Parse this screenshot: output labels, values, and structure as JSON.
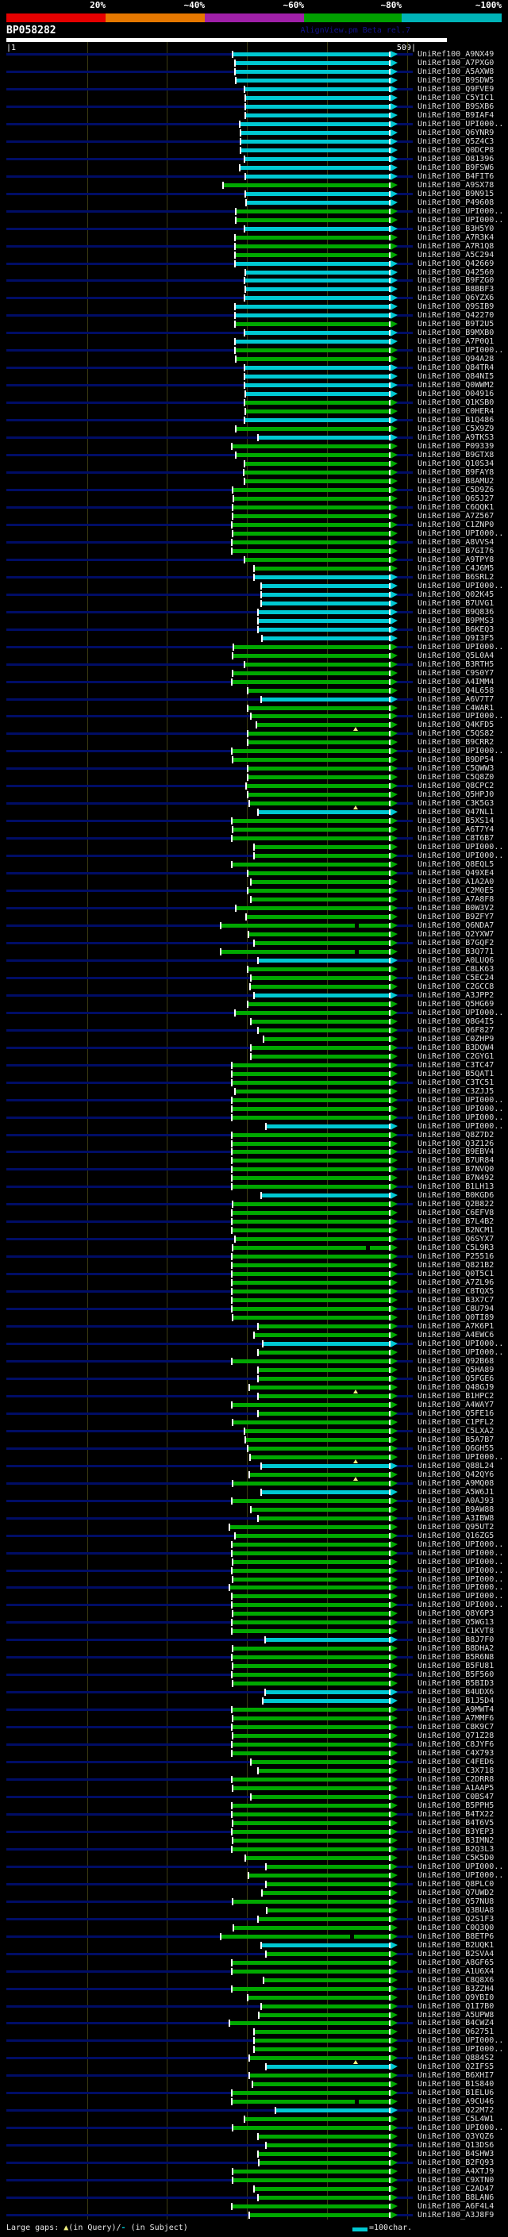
{
  "chart_data": {
    "type": "bar",
    "title": "BP058282",
    "app_version": "AlignView.pm Beta rel.7",
    "xlabel": "",
    "ylabel": "",
    "xlim": [
      1,
      509
    ],
    "ruler": {
      "start_label": "|1",
      "end_label": "509|",
      "gridline_positions": [
        100,
        200,
        300,
        400,
        500
      ]
    },
    "identity_scale": {
      "labels": [
        "20%",
        "~40%",
        "~60%",
        "~80%",
        "~100%"
      ],
      "colors": [
        "#e60000",
        "#e67800",
        "#a020a8",
        "#00a000",
        "#00b4b8"
      ]
    },
    "bar_colors": {
      "c": "#00c8d2",
      "g": "#00a800"
    },
    "marker_meaning": {
      "t": "large gap in Query",
      "d": "large gap in Subject"
    },
    "id_prefix": "UniRef100_",
    "rows": [
      [
        "A9NX49",
        294,
        "c"
      ],
      [
        "A7PXG0",
        297,
        "c"
      ],
      [
        "A5AXW8",
        297,
        "c"
      ],
      [
        "B9SDW5",
        298,
        "c"
      ],
      [
        "Q9FVE9",
        309,
        "c"
      ],
      [
        "C5YIC1",
        310,
        "c"
      ],
      [
        "B9SXB6",
        310,
        "c"
      ],
      [
        "B9IAF4",
        310,
        "c"
      ],
      [
        "UPI000..",
        303,
        "c"
      ],
      [
        "Q6YNR9",
        304,
        "c"
      ],
      [
        "Q5Z4C3",
        304,
        "c"
      ],
      [
        "Q0DCP8",
        304,
        "c"
      ],
      [
        "O81396",
        309,
        "c"
      ],
      [
        "B9FSW6",
        303,
        "c"
      ],
      [
        "B4FIT6",
        310,
        "c"
      ],
      [
        "A9SX78",
        282,
        "g"
      ],
      [
        "B9N915",
        310,
        "c"
      ],
      [
        "P49608",
        311,
        "c"
      ],
      [
        "UPI000..",
        298,
        "g"
      ],
      [
        "UPI000..",
        298,
        "g"
      ],
      [
        "B3H5Y0",
        309,
        "c"
      ],
      [
        "A7R3K4",
        297,
        "g"
      ],
      [
        "A7R1Q8",
        297,
        "g"
      ],
      [
        "A5C294",
        297,
        "g"
      ],
      [
        "Q42669",
        297,
        "c"
      ],
      [
        "Q42560",
        310,
        "c"
      ],
      [
        "B9FZG0",
        309,
        "c"
      ],
      [
        "B8BBF3",
        310,
        "c"
      ],
      [
        "Q6YZX6",
        309,
        "c"
      ],
      [
        "Q9SIB9",
        297,
        "c"
      ],
      [
        "Q42270",
        297,
        "c"
      ],
      [
        "B9T2U5",
        297,
        "g"
      ],
      [
        "B9MXB0",
        309,
        "c"
      ],
      [
        "A7P0Q1",
        297,
        "c"
      ],
      [
        "UPI000..",
        297,
        "g"
      ],
      [
        "Q94A28",
        298,
        "g"
      ],
      [
        "Q84TR4",
        309,
        "c"
      ],
      [
        "Q84NI5",
        309,
        "c"
      ],
      [
        "Q0WWM2",
        309,
        "c"
      ],
      [
        "O04916",
        310,
        "c"
      ],
      [
        "Q1KSB0",
        309,
        "g"
      ],
      [
        "C0HER4",
        310,
        "g"
      ],
      [
        "B1Q486",
        309,
        "c"
      ],
      [
        "C5X9Z9",
        298,
        "g"
      ],
      [
        "A9TKS3",
        326,
        "c"
      ],
      [
        "P09339",
        293,
        "g"
      ],
      [
        "B9GTX8",
        298,
        "g"
      ],
      [
        "Q10S34",
        309,
        "g"
      ],
      [
        "B9FAY8",
        308,
        "g"
      ],
      [
        "B8AMU2",
        309,
        "g"
      ],
      [
        "C5D9Z6",
        294,
        "g"
      ],
      [
        "Q65J27",
        295,
        "g"
      ],
      [
        "C6QQK1",
        294,
        "g"
      ],
      [
        "A7Z567",
        294,
        "g"
      ],
      [
        "C1ZNP0",
        293,
        "g"
      ],
      [
        "UPI000..",
        294,
        "g"
      ],
      [
        "A8VVS4",
        293,
        "g"
      ],
      [
        "B7GI76",
        293,
        "g"
      ],
      [
        "A9TPY8",
        309,
        "g"
      ],
      [
        "C4J6M5",
        321,
        "g"
      ],
      [
        "B6SRL2",
        321,
        "c"
      ],
      [
        "UPI000..",
        330,
        "c"
      ],
      [
        "Q02K45",
        330,
        "c"
      ],
      [
        "B7UVG1",
        330,
        "c"
      ],
      [
        "B9Q836",
        326,
        "c"
      ],
      [
        "B9PMS3",
        326,
        "c"
      ],
      [
        "B6KEQ3",
        326,
        "c"
      ],
      [
        "Q9I3F5",
        331,
        "c"
      ],
      [
        "UPI000..",
        295,
        "g"
      ],
      [
        "Q5L0A4",
        294,
        "g"
      ],
      [
        "B3RTH5",
        309,
        "g"
      ],
      [
        "C9S0Y7",
        294,
        "g"
      ],
      [
        "A4IMM4",
        293,
        "g"
      ],
      [
        "Q4L658",
        313,
        "g"
      ],
      [
        "A6V7T7",
        330,
        "c"
      ],
      [
        "C4WAR1",
        313,
        "g"
      ],
      [
        "UPI000..",
        317,
        "g"
      ],
      [
        "Q4KFD5",
        324,
        "g",
        "t",
        448
      ],
      [
        "C5QS82",
        313,
        "g"
      ],
      [
        "B9CRR2",
        313,
        "g"
      ],
      [
        "UPI000..",
        293,
        "g"
      ],
      [
        "B9DP54",
        294,
        "g"
      ],
      [
        "C5QWW3",
        313,
        "g"
      ],
      [
        "C5Q8Z0",
        313,
        "g"
      ],
      [
        "Q8CPC2",
        311,
        "g"
      ],
      [
        "Q5HPJ0",
        313,
        "g"
      ],
      [
        "C3K5G3",
        315,
        "g",
        "t",
        448
      ],
      [
        "Q47NL1",
        326,
        "c"
      ],
      [
        "B5XS14",
        293,
        "g"
      ],
      [
        "A6T7Y4",
        294,
        "g"
      ],
      [
        "C8T6B7",
        293,
        "g"
      ],
      [
        "UPI000..",
        321,
        "g"
      ],
      [
        "UPI000..",
        321,
        "g"
      ],
      [
        "Q8EQL5",
        293,
        "g"
      ],
      [
        "Q49XE4",
        313,
        "g"
      ],
      [
        "A1A2A0",
        317,
        "g"
      ],
      [
        "C2M0E5",
        313,
        "g"
      ],
      [
        "A7A8F8",
        317,
        "g"
      ],
      [
        "B0W3V2",
        298,
        "g"
      ],
      [
        "B9ZFY7",
        311,
        "g"
      ],
      [
        "Q6NDA7",
        279,
        "g",
        "d",
        447
      ],
      [
        "Q2YXW7",
        314,
        "g"
      ],
      [
        "B7GQF2",
        321,
        "g"
      ],
      [
        "B3Q771",
        279,
        "g",
        "d",
        447
      ],
      [
        "A0LUQ6",
        326,
        "c"
      ],
      [
        "C8LK63",
        313,
        "g"
      ],
      [
        "C5EC24",
        317,
        "g"
      ],
      [
        "C2GCC8",
        316,
        "g"
      ],
      [
        "A3JPP2",
        321,
        "c"
      ],
      [
        "Q5HG69",
        313,
        "g"
      ],
      [
        "UPI000..",
        297,
        "g"
      ],
      [
        "Q8G4I5",
        317,
        "g"
      ],
      [
        "Q6F827",
        326,
        "g"
      ],
      [
        "C0ZHP9",
        333,
        "g"
      ],
      [
        "B3DQW4",
        317,
        "g"
      ],
      [
        "C2GYG1",
        317,
        "g"
      ],
      [
        "C3TC47",
        293,
        "g"
      ],
      [
        "B5QAT1",
        293,
        "g"
      ],
      [
        "C3TC51",
        293,
        "g"
      ],
      [
        "C3ZJJ5",
        297,
        "g"
      ],
      [
        "UPI000..",
        293,
        "g"
      ],
      [
        "UPI000..",
        293,
        "g"
      ],
      [
        "UPI000..",
        293,
        "g"
      ],
      [
        "UPI000..",
        336,
        "c"
      ],
      [
        "Q8Z7D2",
        293,
        "g"
      ],
      [
        "Q3Z126",
        293,
        "g"
      ],
      [
        "B9EBV4",
        293,
        "g"
      ],
      [
        "B7UR84",
        293,
        "g"
      ],
      [
        "B7NVQ0",
        293,
        "g"
      ],
      [
        "B7N492",
        293,
        "g"
      ],
      [
        "B1LH13",
        293,
        "g"
      ],
      [
        "B0KGD6",
        330,
        "c"
      ],
      [
        "Q2B822",
        294,
        "g"
      ],
      [
        "C6EFV8",
        293,
        "g"
      ],
      [
        "B7L4B2",
        293,
        "g"
      ],
      [
        "B2NCM1",
        293,
        "g"
      ],
      [
        "Q6SYX7",
        297,
        "g"
      ],
      [
        "C5L9R3",
        294,
        "g",
        "d",
        461
      ],
      [
        "P25516",
        293,
        "g"
      ],
      [
        "Q821B2",
        293,
        "g"
      ],
      [
        "Q0T5C1",
        293,
        "g"
      ],
      [
        "A7ZL96",
        293,
        "g"
      ],
      [
        "C8TQX5",
        293,
        "g"
      ],
      [
        "B3X7C7",
        293,
        "g"
      ],
      [
        "C8U794",
        293,
        "g"
      ],
      [
        "Q0TI89",
        294,
        "g"
      ],
      [
        "A7K6P1",
        326,
        "g"
      ],
      [
        "A4EWC6",
        321,
        "g"
      ],
      [
        "UPI000..",
        332,
        "c"
      ],
      [
        "UPI000..",
        326,
        "g"
      ],
      [
        "Q92B68",
        293,
        "g"
      ],
      [
        "Q5HA89",
        326,
        "g"
      ],
      [
        "Q5FGE6",
        326,
        "g"
      ],
      [
        "Q48GJ9",
        315,
        "g",
        "t",
        448
      ],
      [
        "B1HPC2",
        326,
        "g"
      ],
      [
        "A4WAY7",
        293,
        "g"
      ],
      [
        "Q5FE16",
        326,
        "g"
      ],
      [
        "C1PFL2",
        294,
        "g"
      ],
      [
        "C5LXA2",
        309,
        "g"
      ],
      [
        "B5A7B7",
        310,
        "g"
      ],
      [
        "Q6GH55",
        313,
        "g"
      ],
      [
        "UPI000..",
        316,
        "g",
        "t",
        448
      ],
      [
        "Q88L24",
        330,
        "c"
      ],
      [
        "Q42QY6",
        315,
        "g",
        "t",
        448
      ],
      [
        "A9MQ08",
        294,
        "g"
      ],
      [
        "A5W6J1",
        330,
        "c"
      ],
      [
        "A0AJ93",
        293,
        "g"
      ],
      [
        "B9AW88",
        317,
        "g"
      ],
      [
        "A3IBW8",
        326,
        "g"
      ],
      [
        "Q95UT2",
        290,
        "g"
      ],
      [
        "Q16ZG5",
        297,
        "g"
      ],
      [
        "UPI000..",
        293,
        "g"
      ],
      [
        "UPI000..",
        293,
        "g"
      ],
      [
        "UPI000..",
        294,
        "g"
      ],
      [
        "UPI000..",
        293,
        "g"
      ],
      [
        "UPI000..",
        294,
        "g"
      ],
      [
        "UPI000..",
        290,
        "g"
      ],
      [
        "UPI000..",
        293,
        "g"
      ],
      [
        "UPI000..",
        293,
        "g"
      ],
      [
        "Q8Y6P3",
        294,
        "g"
      ],
      [
        "Q5WG13",
        293,
        "g"
      ],
      [
        "C1KVT8",
        293,
        "g"
      ],
      [
        "B8J7F0",
        335,
        "c"
      ],
      [
        "B8DHA2",
        294,
        "g"
      ],
      [
        "B5R6N8",
        293,
        "g"
      ],
      [
        "B5FU81",
        294,
        "g"
      ],
      [
        "B5F560",
        293,
        "g"
      ],
      [
        "B5BID3",
        294,
        "g"
      ],
      [
        "B4UDX6",
        335,
        "c"
      ],
      [
        "B1J5D4",
        332,
        "c"
      ],
      [
        "A9MWT4",
        293,
        "g"
      ],
      [
        "A7MMF6",
        294,
        "g"
      ],
      [
        "C8K9C7",
        293,
        "g"
      ],
      [
        "Q71Z28",
        294,
        "g"
      ],
      [
        "C8JYF6",
        293,
        "g"
      ],
      [
        "C4X793",
        293,
        "g"
      ],
      [
        "C4FED6",
        317,
        "g"
      ],
      [
        "C3X718",
        326,
        "g"
      ],
      [
        "C2DRR8",
        293,
        "g"
      ],
      [
        "A1AAP5",
        294,
        "g"
      ],
      [
        "C0BS47",
        317,
        "g"
      ],
      [
        "B5PPH5",
        293,
        "g"
      ],
      [
        "B4TX22",
        293,
        "g"
      ],
      [
        "B4T6V5",
        294,
        "g"
      ],
      [
        "B3YEP3",
        293,
        "g"
      ],
      [
        "B3IMN2",
        294,
        "g"
      ],
      [
        "B2Q3L3",
        293,
        "g"
      ],
      [
        "C5K5D0",
        310,
        "g"
      ],
      [
        "UPI000..",
        336,
        "g"
      ],
      [
        "UPI000..",
        314,
        "g"
      ],
      [
        "Q8PLC0",
        336,
        "g"
      ],
      [
        "Q7UWD2",
        331,
        "g"
      ],
      [
        "Q57NU8",
        294,
        "g"
      ],
      [
        "Q3BUA8",
        337,
        "g"
      ],
      [
        "Q2S1F3",
        326,
        "g"
      ],
      [
        "C0Q3Q0",
        295,
        "g"
      ],
      [
        "B8ETP6",
        279,
        "g",
        "d",
        441
      ],
      [
        "B2UQK1",
        330,
        "c"
      ],
      [
        "B2SVA4",
        336,
        "g"
      ],
      [
        "A8GF65",
        293,
        "g"
      ],
      [
        "A1U6X4",
        293,
        "g"
      ],
      [
        "C8Q8X6",
        333,
        "g"
      ],
      [
        "B3ZZH4",
        293,
        "g"
      ],
      [
        "Q9YBI0",
        313,
        "g"
      ],
      [
        "Q1I7B0",
        330,
        "g"
      ],
      [
        "A5UPW8",
        327,
        "g"
      ],
      [
        "B4CWZ4",
        290,
        "g"
      ],
      [
        "Q62751",
        321,
        "g"
      ],
      [
        "UPI000..",
        321,
        "g"
      ],
      [
        "UPI000..",
        321,
        "g"
      ],
      [
        "Q884S2",
        315,
        "g",
        "t",
        448
      ],
      [
        "Q2IFS5",
        336,
        "c"
      ],
      [
        "B6XHI7",
        315,
        "g"
      ],
      [
        "B1S840",
        319,
        "g"
      ],
      [
        "B1ELU6",
        293,
        "g"
      ],
      [
        "A9CU46",
        293,
        "g",
        "d",
        447
      ],
      [
        "Q22M72",
        348,
        "c"
      ],
      [
        "C5L4W1",
        309,
        "g"
      ],
      [
        "UPI000..",
        294,
        "g"
      ],
      [
        "Q3YQZ6",
        326,
        "g"
      ],
      [
        "Q13DS6",
        336,
        "g"
      ],
      [
        "B4SHW3",
        326,
        "g"
      ],
      [
        "B2FQ93",
        327,
        "g"
      ],
      [
        "A4XTJ9",
        294,
        "g"
      ],
      [
        "C9XTN0",
        294,
        "g"
      ],
      [
        "C2AD47",
        321,
        "g"
      ],
      [
        "B8LAN6",
        326,
        "g"
      ],
      [
        "A6F4L4",
        293,
        "g"
      ],
      [
        "A3J8F9",
        315,
        "g"
      ]
    ],
    "legend_position": "bottom",
    "grid": true,
    "footer": {
      "large_gaps_prefix": "Large gaps: ",
      "query_gap_glyph": "▲",
      "query_gap_text": "(in Query)/",
      "subject_gap_glyph": "-",
      "subject_gap_text": " (in Subject)",
      "unit_text": "=100char."
    }
  }
}
